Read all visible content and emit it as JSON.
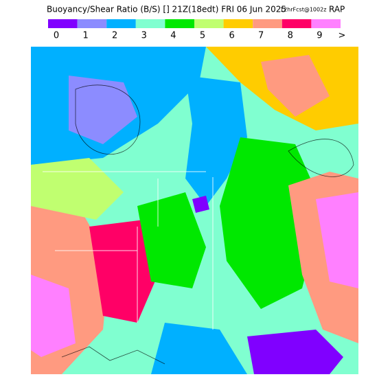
{
  "header": {
    "title": "Buoyancy/Shear Ratio (B/S) [] 21Z(18edt) FRI 06 Jun 2025",
    "forecast": "12hrFcst@1002z",
    "model": "RAP"
  },
  "legend": {
    "items": [
      {
        "label": "0",
        "color": "#8000ff"
      },
      {
        "label": "1",
        "color": "#8c8cff"
      },
      {
        "label": "2",
        "color": "#00b0ff"
      },
      {
        "label": "3",
        "color": "#80ffd0"
      },
      {
        "label": "4",
        "color": "#00e800"
      },
      {
        "label": "5",
        "color": "#c0ff70"
      },
      {
        "label": "6",
        "color": "#ffcc00"
      },
      {
        "label": "7",
        "color": "#ff9a80"
      },
      {
        "label": "8",
        "color": "#ff0066"
      },
      {
        "label": "9",
        "color": "#ff80ff"
      }
    ],
    "overflow": ">"
  }
}
